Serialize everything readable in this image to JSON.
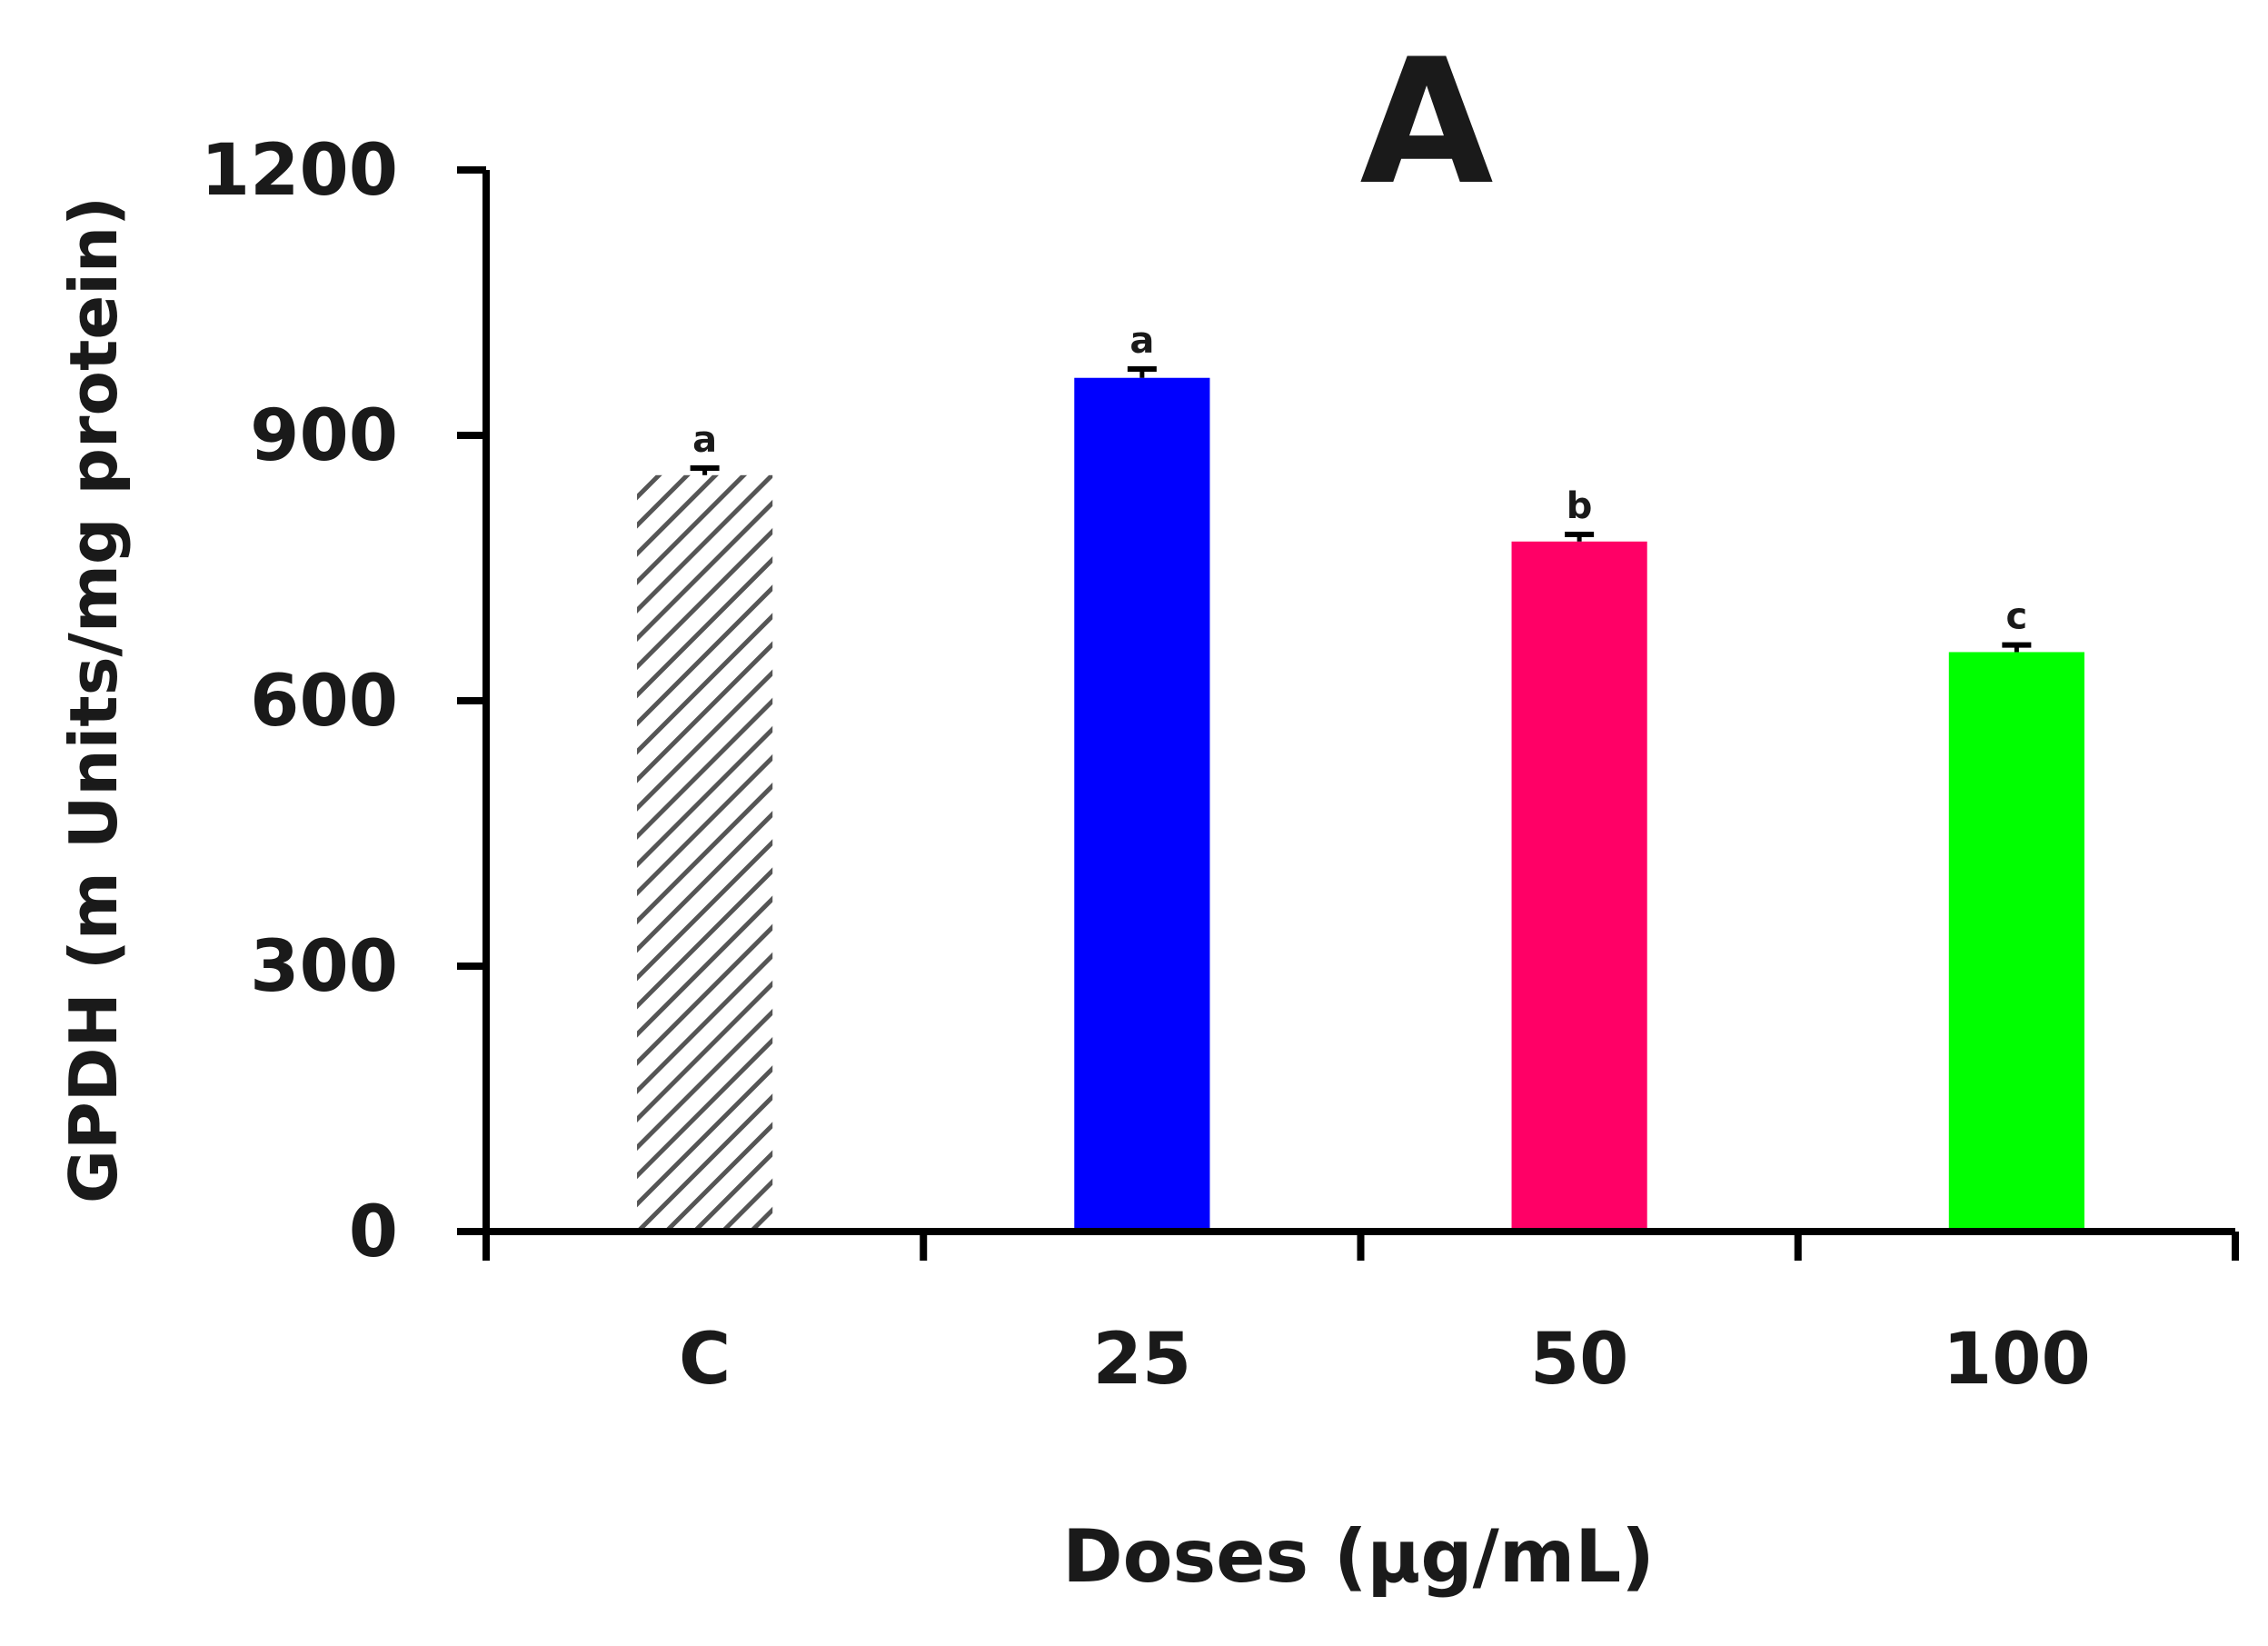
{
  "chart_data": {
    "type": "bar",
    "title": "A",
    "xlabel": "Doses (µg/mL)",
    "ylabel": "GPDH (m Units/mg protein)",
    "categories": [
      "C",
      "25",
      "50",
      "100"
    ],
    "values": [
      855,
      965,
      780,
      655
    ],
    "errors": [
      8,
      10,
      8,
      8
    ],
    "significance": [
      "a",
      "a",
      "b",
      "c"
    ],
    "colors": [
      "#555555",
      "#0000ff",
      "#ff0066",
      "#00ff00"
    ],
    "patterns": [
      "hatched",
      "solid",
      "solid",
      "solid"
    ],
    "ylim": [
      0,
      1200
    ],
    "yticks": [
      0,
      300,
      600,
      900,
      1200
    ],
    "grid": false,
    "legend": "none"
  }
}
